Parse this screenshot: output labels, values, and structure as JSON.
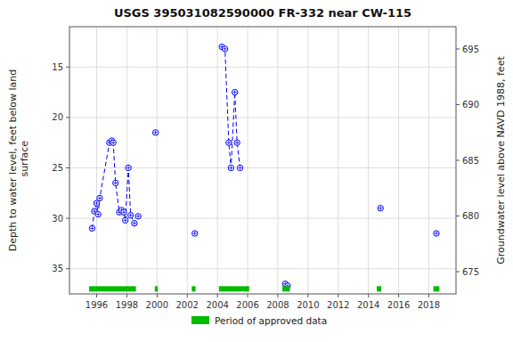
{
  "chart_data": {
    "type": "line",
    "title": "USGS 395031082590000 FR-332 near CW-115",
    "ylabel": "Depth to water level, feet below land\n surface",
    "y2label": "Groundwater level above NAVD 1988, feet",
    "xlim": [
      1994.2,
      2019.8
    ],
    "ylim": [
      37.5,
      11.0
    ],
    "y2lim": [
      673.0,
      697.0
    ],
    "xticks": [
      1996,
      1998,
      2000,
      2002,
      2004,
      2006,
      2008,
      2010,
      2012,
      2014,
      2016,
      2018
    ],
    "yticks": [
      15,
      20,
      25,
      30,
      35
    ],
    "y2ticks": [
      675,
      680,
      685,
      690,
      695
    ],
    "grid": true,
    "legend": "bottom",
    "series": [
      {
        "x": [
          1995.7,
          1995.85,
          1996.0,
          1996.1,
          1996.2,
          1996.85,
          1997.0,
          1997.1,
          1997.25,
          1997.5,
          1997.65,
          1997.8,
          1997.9,
          1998.1,
          1998.25,
          1998.5,
          1998.75
        ],
        "values": [
          31.0,
          29.3,
          28.5,
          29.6,
          28.0,
          22.5,
          22.3,
          22.5,
          26.5,
          29.4,
          29.2,
          29.4,
          30.2,
          25.0,
          29.7,
          30.5,
          29.8
        ],
        "color": "blue",
        "marker": "circle-cross",
        "line_style": "dashed"
      },
      {
        "x": [
          1999.9
        ],
        "values": [
          21.5
        ],
        "color": "blue",
        "marker": "circle-cross",
        "line_style": "none"
      },
      {
        "x": [
          2002.5
        ],
        "values": [
          31.5
        ],
        "color": "blue",
        "marker": "circle-cross",
        "line_style": "none"
      },
      {
        "x": [
          2004.3,
          2004.5,
          2004.75,
          2004.9,
          2005.15,
          2005.3,
          2005.5
        ],
        "values": [
          13.0,
          13.2,
          22.5,
          25.0,
          17.5,
          22.5,
          25.0
        ],
        "color": "blue",
        "marker": "circle-cross",
        "line_style": "dashed"
      },
      {
        "x": [
          2008.5,
          2008.65
        ],
        "values": [
          36.5,
          36.7
        ],
        "color": "blue",
        "marker": "circle-cross",
        "line_style": "dashed"
      },
      {
        "x": [
          2014.8
        ],
        "values": [
          29.0
        ],
        "color": "blue",
        "marker": "circle-cross",
        "line_style": "none"
      },
      {
        "x": [
          2018.5
        ],
        "values": [
          31.5
        ],
        "color": "blue",
        "marker": "circle-cross",
        "line_style": "none"
      },
      {
        "name": "Period of approved data",
        "type": "range_bar",
        "color": "#00bb00",
        "start": [
          1995.5,
          1999.85,
          2002.3,
          2004.1,
          2008.3,
          2014.55,
          2018.3
        ],
        "end": [
          1998.6,
          2000.05,
          2002.55,
          2006.1,
          2008.8,
          2014.85,
          2018.7
        ],
        "y": 37.0
      }
    ]
  }
}
